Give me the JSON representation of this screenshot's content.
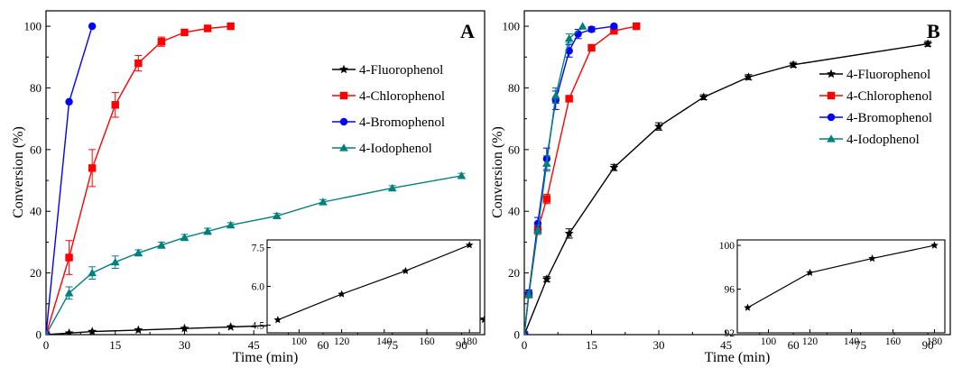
{
  "chart_data": [
    {
      "type": "line",
      "panel_label": "A",
      "xlabel": "Time (min)",
      "ylabel": "Conversion (%)",
      "xlim": [
        0,
        95
      ],
      "ylim": [
        0,
        105
      ],
      "xticks": [
        0,
        15,
        30,
        45,
        60,
        75,
        90
      ],
      "yticks": [
        0,
        20,
        40,
        60,
        80,
        100
      ],
      "legend_position": "right",
      "series": [
        {
          "name": "4-Fluorophenol",
          "color": "#000000",
          "marker": "star",
          "x": [
            0,
            5,
            10,
            20,
            30,
            40,
            50,
            60,
            90,
            95
          ],
          "y": [
            0,
            0.5,
            1.0,
            1.5,
            2.0,
            2.5,
            3.0,
            3.5,
            4.7,
            5.0
          ]
        },
        {
          "name": "4-Chlorophenol",
          "color": "#ff0000",
          "marker": "square",
          "x": [
            0,
            5,
            10,
            15,
            20,
            25,
            30,
            35,
            40
          ],
          "y": [
            0,
            25,
            54,
            74.5,
            88,
            95,
            98,
            99.3,
            100
          ],
          "err": [
            0,
            5.5,
            6,
            4,
            2.5,
            1.5,
            0.8,
            0.5,
            0
          ]
        },
        {
          "name": "4-Bromophenol",
          "color": "#0000ff",
          "marker": "circle",
          "x": [
            0,
            5,
            10
          ],
          "y": [
            0,
            75.5,
            100
          ]
        },
        {
          "name": "4-Iodophenol",
          "color": "#008080",
          "marker": "triangle",
          "x": [
            0,
            5,
            10,
            15,
            20,
            25,
            30,
            35,
            40,
            50,
            60,
            75,
            90
          ],
          "y": [
            0,
            13.5,
            20,
            23.5,
            26.5,
            29,
            31.5,
            33.5,
            35.5,
            38.5,
            43,
            47.5,
            51.5
          ],
          "err": [
            0,
            2,
            2,
            2,
            1,
            1,
            1,
            1,
            0.8,
            0.8,
            0.8,
            0.8,
            0.8
          ]
        }
      ],
      "inset": {
        "series": "4-Fluorophenol",
        "x": [
          90,
          120,
          150,
          180
        ],
        "y": [
          4.7,
          5.7,
          6.6,
          7.6
        ],
        "xlim": [
          85,
          185
        ],
        "ylim": [
          4.2,
          7.8
        ],
        "xticks": [
          100,
          120,
          140,
          160,
          180
        ],
        "yticks": [
          4.5,
          6.0,
          7.5
        ],
        "ytick_labels": [
          "4.5",
          "6.0",
          "7.5"
        ]
      }
    },
    {
      "type": "line",
      "panel_label": "B",
      "xlabel": "Time (min)",
      "ylabel": "Conversion (%)",
      "xlim": [
        0,
        95
      ],
      "ylim": [
        0,
        105
      ],
      "xticks": [
        0,
        15,
        30,
        45,
        60,
        75,
        90
      ],
      "yticks": [
        0,
        20,
        40,
        60,
        80,
        100
      ],
      "legend_position": "right",
      "series": [
        {
          "name": "4-Fluorophenol",
          "color": "#000000",
          "marker": "star",
          "x": [
            0,
            5,
            10,
            20,
            30,
            40,
            50,
            60,
            90
          ],
          "y": [
            0,
            18,
            32.8,
            54.2,
            67.5,
            77,
            83.5,
            87.5,
            94.3
          ],
          "err": [
            0,
            0.8,
            1.5,
            1,
            1.2,
            0.8,
            0.8,
            0.8,
            0.8
          ]
        },
        {
          "name": "4-Chlorophenol",
          "color": "#ff0000",
          "marker": "square",
          "x": [
            0,
            1,
            3,
            5,
            10,
            15,
            20,
            25
          ],
          "y": [
            0,
            13,
            34,
            44,
            76.5,
            93,
            98.5,
            100
          ],
          "err": [
            0,
            1,
            1.5,
            1.5,
            1,
            1,
            0.8,
            0
          ]
        },
        {
          "name": "4-Bromophenol",
          "color": "#0000ff",
          "marker": "circle",
          "x": [
            0,
            1,
            3,
            5,
            7,
            10,
            12,
            15,
            20
          ],
          "y": [
            0,
            13.5,
            36,
            57,
            76,
            92,
            97.5,
            99,
            100
          ],
          "err": [
            0,
            1,
            2,
            3.5,
            3,
            2,
            1.5,
            0.8,
            0
          ]
        },
        {
          "name": "4-Iodophenol",
          "color": "#008080",
          "marker": "triangle",
          "x": [
            0,
            1,
            3,
            5,
            7,
            10,
            13
          ],
          "y": [
            0,
            13,
            34,
            55.5,
            77.5,
            96,
            100
          ],
          "err": [
            0,
            1,
            1.5,
            2.5,
            2.5,
            1.5,
            0
          ]
        }
      ],
      "inset": {
        "series": "4-Fluorophenol",
        "x": [
          90,
          120,
          150,
          180
        ],
        "y": [
          94.3,
          97.5,
          98.8,
          100
        ],
        "xlim": [
          85,
          185
        ],
        "ylim": [
          92,
          100.5
        ],
        "xticks": [
          100,
          120,
          140,
          160,
          180
        ],
        "yticks": [
          92,
          96,
          100
        ],
        "ytick_labels": [
          "92",
          "96",
          "100"
        ]
      }
    }
  ]
}
